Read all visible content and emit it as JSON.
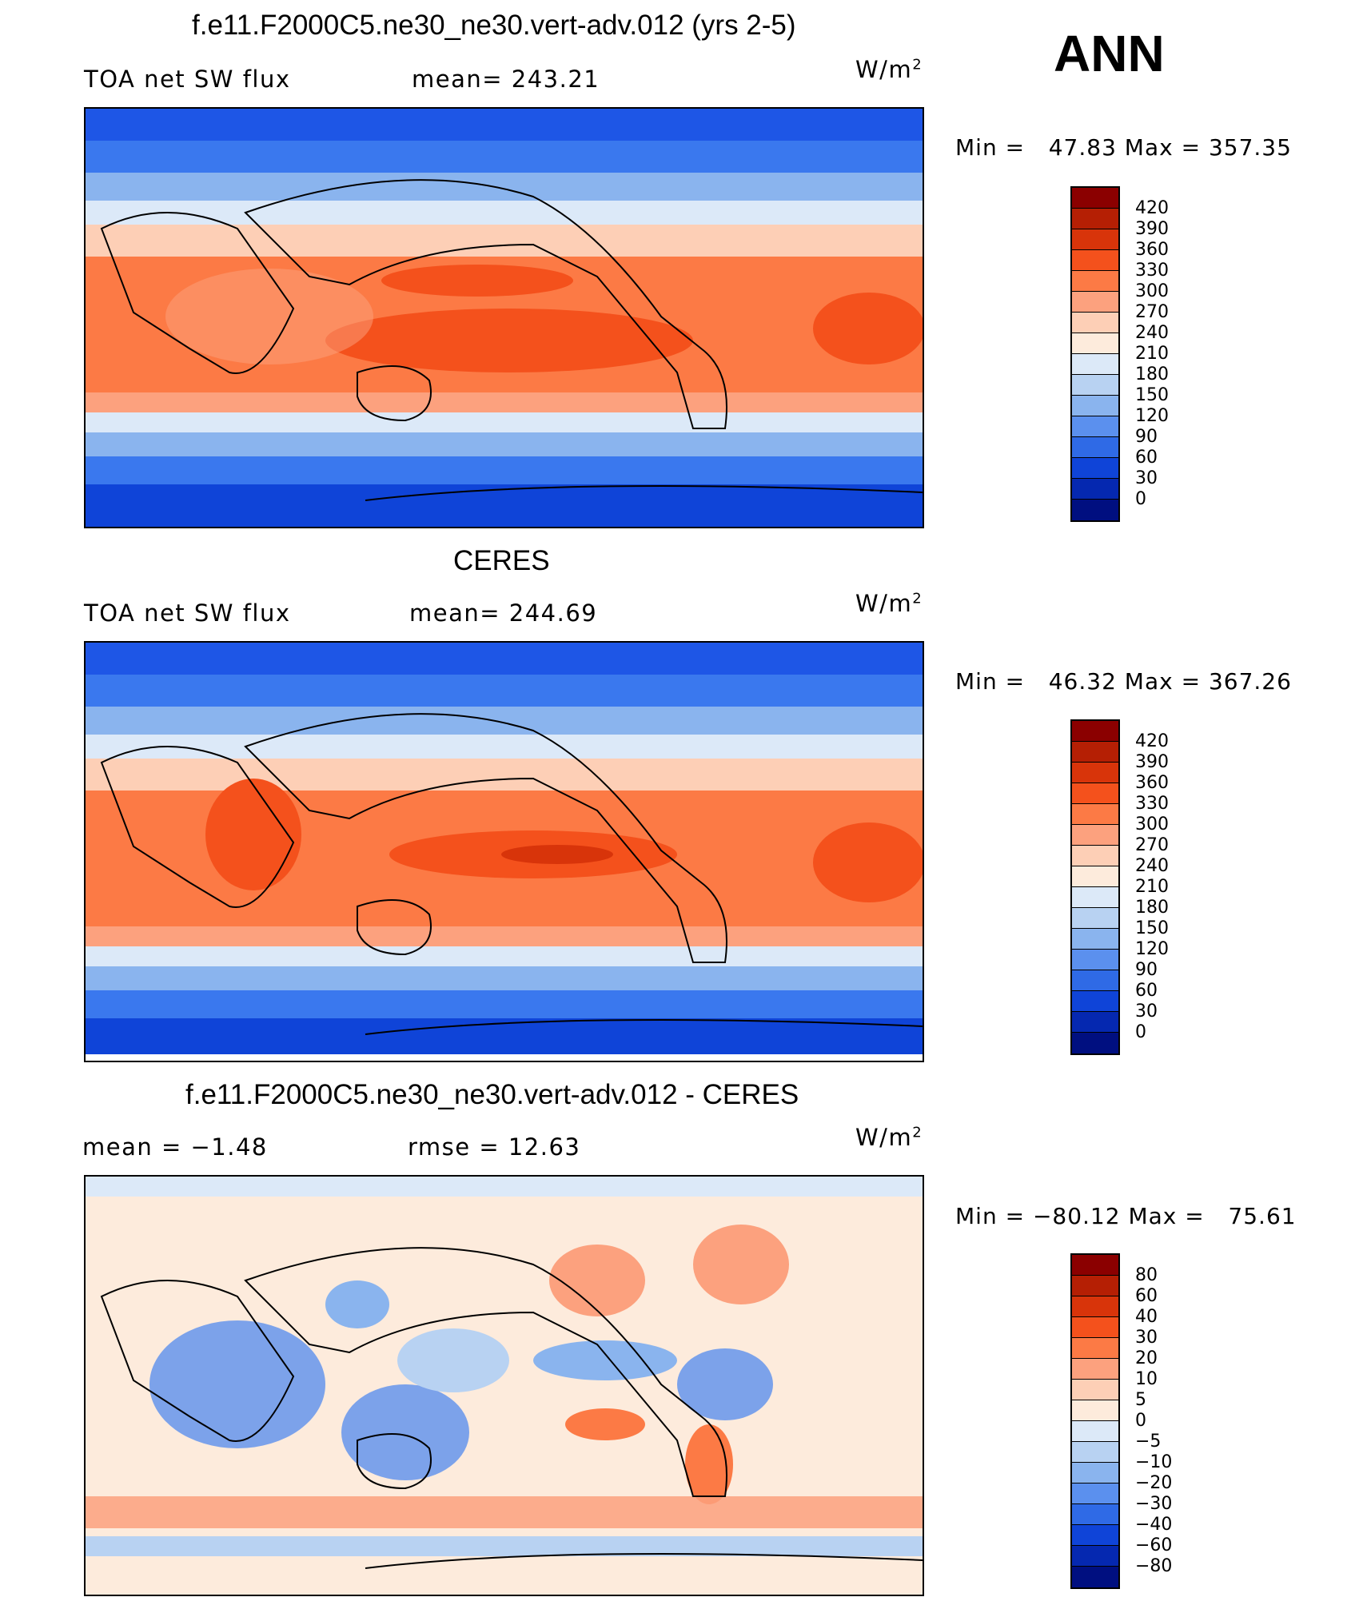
{
  "season": "ANN",
  "panels": [
    {
      "title": "f.e11.F2000C5.ne30_ne30.vert-adv.012 (yrs 2-5)",
      "left_label": "TOA net SW flux",
      "center_label": "mean= 243.21",
      "units_base": "W/m",
      "units_exp": "2",
      "minmax": "Min =   47.83 Max = 357.35",
      "colorbar": {
        "colors": [
          "#8b0000",
          "#b51f04",
          "#d8340a",
          "#f4511c",
          "#fc7a45",
          "#fca17e",
          "#fdcfb6",
          "#fdebdc",
          "#dce9f8",
          "#b8d2f2",
          "#8ab4ee",
          "#5b90ee",
          "#2f6ae6",
          "#0f44d8",
          "#0528b0",
          "#000f80"
        ],
        "labels": [
          "420",
          "390",
          "360",
          "330",
          "300",
          "270",
          "240",
          "210",
          "180",
          "150",
          "120",
          "90",
          "60",
          "30",
          "0"
        ]
      }
    },
    {
      "title": "CERES",
      "left_label": "TOA net SW flux",
      "center_label": "mean= 244.69",
      "units_base": "W/m",
      "units_exp": "2",
      "minmax": "Min =   46.32 Max = 367.26",
      "colorbar": {
        "colors": [
          "#8b0000",
          "#b51f04",
          "#d8340a",
          "#f4511c",
          "#fc7a45",
          "#fca17e",
          "#fdcfb6",
          "#fdebdc",
          "#dce9f8",
          "#b8d2f2",
          "#8ab4ee",
          "#5b90ee",
          "#2f6ae6",
          "#0f44d8",
          "#0528b0",
          "#000f80"
        ],
        "labels": [
          "420",
          "390",
          "360",
          "330",
          "300",
          "270",
          "240",
          "210",
          "180",
          "150",
          "120",
          "90",
          "60",
          "30",
          "0"
        ]
      }
    },
    {
      "title": "f.e11.F2000C5.ne30_ne30.vert-adv.012 - CERES",
      "left_label": "mean =   −1.48",
      "center_label": "rmse =   12.63",
      "units_base": "W/m",
      "units_exp": "2",
      "minmax": "Min = −80.12 Max =   75.61",
      "colorbar": {
        "colors": [
          "#8b0000",
          "#b51f04",
          "#d8340a",
          "#f4511c",
          "#fc7a45",
          "#fca17e",
          "#fdcfb6",
          "#fdebdc",
          "#dce9f8",
          "#b8d2f2",
          "#8ab4ee",
          "#5b90ee",
          "#2f6ae6",
          "#0f44d8",
          "#0528b0",
          "#000f80"
        ],
        "labels": [
          "80",
          "60",
          "40",
          "30",
          "20",
          "10",
          "5",
          "0",
          "−5",
          "−10",
          "−20",
          "−30",
          "−40",
          "−60",
          "−80"
        ]
      }
    }
  ]
}
